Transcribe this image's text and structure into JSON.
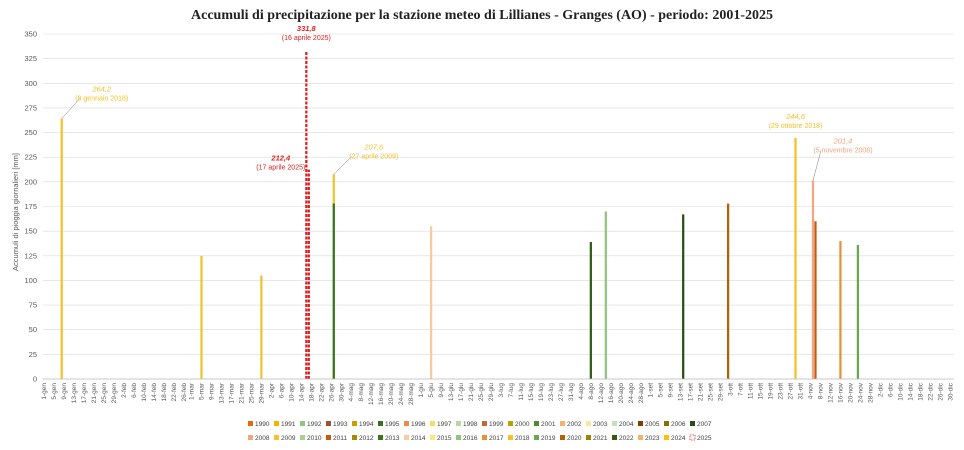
{
  "chart_data": {
    "type": "bar",
    "title": "Accumuli di precipitazione per la stazione meteo di Lillianes - Granges (AO) - periodo: 2001-2025",
    "ylabel": "Accumuli di pioggia giornalieri [mm]",
    "xlabel": "",
    "ylim": [
      0,
      350
    ],
    "yticks": [
      0,
      25,
      50,
      75,
      100,
      125,
      150,
      175,
      200,
      225,
      250,
      275,
      300,
      325,
      350
    ],
    "grid": true,
    "legend_position": "bottom",
    "x_tick_labels": [
      "1-gen",
      "5-gen",
      "9-gen",
      "13-gen",
      "17-gen",
      "21-gen",
      "25-gen",
      "29-gen",
      "2-feb",
      "6-feb",
      "10-feb",
      "14-feb",
      "18-feb",
      "22-feb",
      "26-feb",
      "1-mar",
      "5-mar",
      "9-mar",
      "13-mar",
      "17-mar",
      "21-mar",
      "25-mar",
      "29-mar",
      "2-apr",
      "6-apr",
      "10-apr",
      "14-apr",
      "18-apr",
      "22-apr",
      "26-apr",
      "30-apr",
      "4-mag",
      "8-mag",
      "12-mag",
      "16-mag",
      "20-mag",
      "24-mag",
      "28-mag",
      "1-giu",
      "5-giu",
      "9-giu",
      "13-giu",
      "17-giu",
      "21-giu",
      "25-giu",
      "29-giu",
      "3-lug",
      "7-lug",
      "11-lug",
      "15-lug",
      "19-lug",
      "23-lug",
      "27-lug",
      "31-lug",
      "4-ago",
      "8-ago",
      "12-ago",
      "16-ago",
      "20-ago",
      "24-ago",
      "28-ago",
      "1-set",
      "5-set",
      "9-set",
      "13-set",
      "17-set",
      "21-set",
      "25-set",
      "29-set",
      "3-ott",
      "7-ott",
      "11-ott",
      "15-ott",
      "19-ott",
      "23-ott",
      "27-ott",
      "31-ott",
      "4-nov",
      "8-nov",
      "12-nov",
      "16-nov",
      "20-nov",
      "24-nov",
      "28-nov",
      "2-dic",
      "6-dic",
      "10-dic",
      "14-dic",
      "18-dic",
      "22-dic",
      "26-dic",
      "30-dic"
    ],
    "legend": [
      {
        "year": "1990",
        "color": "#e36c09"
      },
      {
        "year": "1991",
        "color": "#f4b400"
      },
      {
        "year": "1992",
        "color": "#92c47d"
      },
      {
        "year": "1993",
        "color": "#a0522d"
      },
      {
        "year": "1994",
        "color": "#c9a000"
      },
      {
        "year": "1995",
        "color": "#3a6e22"
      },
      {
        "year": "1996",
        "color": "#f08a4b"
      },
      {
        "year": "1997",
        "color": "#ffd966"
      },
      {
        "year": "1998",
        "color": "#b6d7a8"
      },
      {
        "year": "1999",
        "color": "#bf6a30"
      },
      {
        "year": "2000",
        "color": "#bfa000"
      },
      {
        "year": "2001",
        "color": "#4e8a2e"
      },
      {
        "year": "2002",
        "color": "#f6b26b"
      },
      {
        "year": "2003",
        "color": "#ffe599"
      },
      {
        "year": "2004",
        "color": "#c5e0b4"
      },
      {
        "year": "2005",
        "color": "#7f3f00"
      },
      {
        "year": "2006",
        "color": "#8a7000"
      },
      {
        "year": "2007",
        "color": "#274e13"
      },
      {
        "year": "2008",
        "color": "#f4a582"
      },
      {
        "year": "2009",
        "color": "#f1c232"
      },
      {
        "year": "2010",
        "color": "#a9d18e"
      },
      {
        "year": "2011",
        "color": "#c55a11"
      },
      {
        "year": "2012",
        "color": "#a68a00"
      },
      {
        "year": "2013",
        "color": "#38761d"
      },
      {
        "year": "2014",
        "color": "#f9cb9c"
      },
      {
        "year": "2015",
        "color": "#ffe680"
      },
      {
        "year": "2016",
        "color": "#93c47d"
      },
      {
        "year": "2017",
        "color": "#e69138"
      },
      {
        "year": "2018",
        "color": "#f6c026"
      },
      {
        "year": "2019",
        "color": "#6aa84f"
      },
      {
        "year": "2020",
        "color": "#b45f06"
      },
      {
        "year": "2021",
        "color": "#a08000"
      },
      {
        "year": "2022",
        "color": "#2f5d18"
      },
      {
        "year": "2023",
        "color": "#f6b26b"
      },
      {
        "year": "2024",
        "color": "#ffc000"
      },
      {
        "year": "2025",
        "color": "#e02020",
        "style": "dashed"
      }
    ],
    "series": [
      {
        "name": "2018",
        "values": [
          {
            "x": "8-gen",
            "y": 264.2
          }
        ]
      },
      {
        "name": "2025",
        "values": [
          {
            "x": "16-apr",
            "y": 331.8
          },
          {
            "x": "17-apr",
            "y": 212.4
          }
        ]
      },
      {
        "name": "2009",
        "values": [
          {
            "x": "27-apr",
            "y": 207.6
          }
        ]
      },
      {
        "name": "2018",
        "values": [
          {
            "x": "29-ott",
            "y": 244.6
          }
        ]
      },
      {
        "name": "2008",
        "values": [
          {
            "x": "5-nov",
            "y": 201.4
          }
        ]
      },
      {
        "name": "2013",
        "values": [
          {
            "x": "27-apr",
            "y": 178
          }
        ]
      },
      {
        "name": "2016",
        "values": [
          {
            "x": "14-ago",
            "y": 170
          }
        ]
      },
      {
        "name": "2020",
        "values": [
          {
            "x": "2-ott",
            "y": 178
          }
        ]
      },
      {
        "name": "2007",
        "values": [
          {
            "x": "14-set",
            "y": 167
          }
        ]
      },
      {
        "name": "2014",
        "values": [
          {
            "x": "5-giu",
            "y": 155
          }
        ]
      },
      {
        "name": "2011",
        "values": [
          {
            "x": "6-nov",
            "y": 160
          }
        ]
      },
      {
        "name": "2022",
        "values": [
          {
            "x": "8-ago",
            "y": 139
          }
        ]
      },
      {
        "name": "2019",
        "values": [
          {
            "x": "23-nov",
            "y": 136
          }
        ]
      },
      {
        "name": "2017",
        "values": [
          {
            "x": "16-nov",
            "y": 140
          }
        ]
      },
      {
        "name": "2009",
        "values": [
          {
            "x": "5-mar",
            "y": 125
          },
          {
            "x": "29-mar",
            "y": 105
          }
        ]
      }
    ],
    "annotations": [
      {
        "value": "264,2",
        "date": "(8 gennaio 2018)",
        "x": "8-gen",
        "y": 264.2,
        "color": "#f6c026"
      },
      {
        "value": "331,8",
        "date": "(16 aprile 2025)",
        "x": "16-apr",
        "y": 331.8,
        "color": "#e02020"
      },
      {
        "value": "212,4",
        "date": "(17 aprile 2025)",
        "x": "17-apr",
        "y": 212.4,
        "color": "#e02020"
      },
      {
        "value": "207,6",
        "date": "(27 aprile 2009)",
        "x": "27-apr",
        "y": 207.6,
        "color": "#f1c232"
      },
      {
        "value": "244,6",
        "date": "(29 ottobre 2018)",
        "x": "29-ott",
        "y": 244.6,
        "color": "#f6c026"
      },
      {
        "value": "201,4",
        "date": "(5 novembre 2008)",
        "x": "5-nov",
        "y": 201.4,
        "color": "#f4a582"
      }
    ]
  }
}
